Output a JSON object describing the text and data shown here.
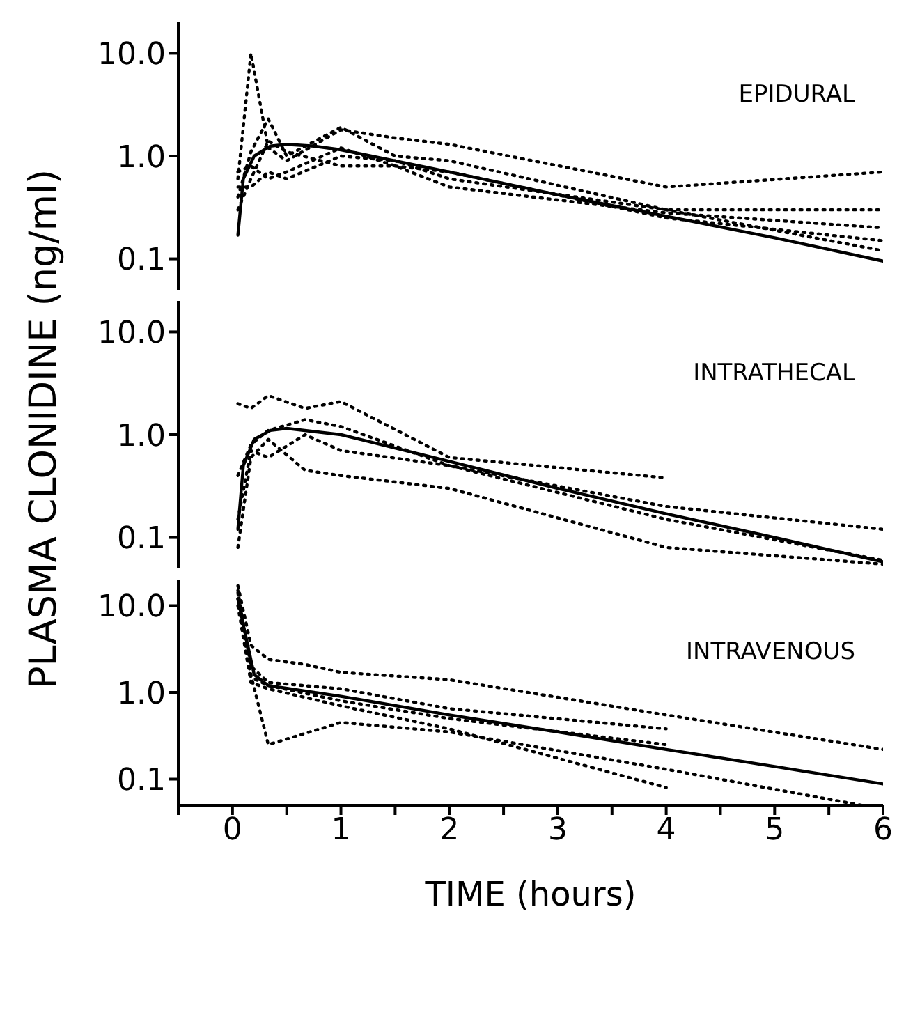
{
  "chart_data": [
    {
      "type": "line",
      "annotations": [
        "EPIDURAL"
      ],
      "xlim": [
        -0.5,
        6
      ],
      "ylim": [
        0.05,
        20
      ],
      "log": "y",
      "tick_labels": "y",
      "grid": false,
      "legend": false,
      "yticks": [
        {
          "value": 0.1,
          "label": "0.1"
        },
        {
          "value": 1,
          "label": "1.0"
        },
        {
          "value": 10,
          "label": "10.0"
        }
      ],
      "series": [
        {
          "color": "#000000",
          "line_style": "dotted",
          "x": [
            0.05,
            0.17,
            0.33,
            0.5,
            1,
            1.5,
            2,
            4,
            6
          ],
          "values": [
            0.6,
            10,
            1.2,
            0.9,
            1.8,
            1.5,
            1.3,
            0.5,
            0.7
          ]
        },
        {
          "color": "#000000",
          "line_style": "dotted",
          "x": [
            0.05,
            0.17,
            0.33,
            0.5,
            1,
            1.5,
            2,
            4,
            6
          ],
          "values": [
            0.4,
            1.1,
            2.3,
            1.0,
            1.9,
            1.0,
            0.9,
            0.3,
            0.3
          ]
        },
        {
          "color": "#000000",
          "line_style": "dotted",
          "x": [
            0.05,
            0.17,
            0.33,
            0.5,
            1,
            1.5,
            2,
            4,
            6
          ],
          "values": [
            0.7,
            0.8,
            0.6,
            0.7,
            1.2,
            0.8,
            0.5,
            0.28,
            0.2
          ]
        },
        {
          "color": "#000000",
          "line_style": "dotted",
          "x": [
            0.05,
            0.17,
            0.33,
            0.5,
            1,
            1.5,
            2,
            4,
            6
          ],
          "values": [
            0.3,
            0.6,
            1.4,
            1.1,
            0.8,
            0.8,
            0.7,
            0.25,
            0.15
          ]
        },
        {
          "color": "#000000",
          "line_style": "dotted",
          "x": [
            0.05,
            0.17,
            0.33,
            0.5,
            1,
            1.5,
            2,
            4,
            6
          ],
          "values": [
            0.5,
            0.5,
            0.7,
            0.6,
            1.0,
            0.9,
            0.6,
            0.3,
            0.12
          ]
        },
        {
          "color": "#000000",
          "line_style": "solid",
          "x": [
            0.05,
            0.1,
            0.2,
            0.35,
            0.5,
            0.75,
            1,
            2,
            3,
            4,
            5,
            6
          ],
          "values": [
            0.17,
            0.6,
            1.0,
            1.25,
            1.3,
            1.25,
            1.15,
            0.7,
            0.42,
            0.26,
            0.16,
            0.095
          ]
        }
      ]
    },
    {
      "type": "line",
      "annotations": [
        "INTRATHECAL"
      ],
      "ylabel": "PLASMA CLONIDINE (ng/ml)",
      "xlim": [
        -0.5,
        6
      ],
      "ylim": [
        0.05,
        20
      ],
      "log": "y",
      "tick_labels": "y",
      "grid": false,
      "legend": false,
      "yticks": [
        {
          "value": 0.1,
          "label": "0.1"
        },
        {
          "value": 1,
          "label": "1.0"
        },
        {
          "value": 10,
          "label": "10.0"
        }
      ],
      "series": [
        {
          "color": "#000000",
          "line_style": "dotted",
          "x": [
            0.05,
            0.17,
            0.33,
            0.67,
            1,
            2,
            4
          ],
          "values": [
            2.0,
            1.8,
            2.4,
            1.8,
            2.1,
            0.6,
            0.38
          ]
        },
        {
          "color": "#000000",
          "line_style": "dotted",
          "x": [
            0.05,
            0.17,
            0.33,
            0.67,
            1,
            2,
            4,
            6
          ],
          "values": [
            0.4,
            0.8,
            1.1,
            1.4,
            1.2,
            0.5,
            0.2,
            0.12
          ]
        },
        {
          "color": "#000000",
          "line_style": "dotted",
          "x": [
            0.05,
            0.17,
            0.33,
            0.67,
            1,
            2,
            4,
            6
          ],
          "values": [
            0.08,
            0.6,
            0.9,
            0.45,
            0.4,
            0.3,
            0.08,
            0.055
          ]
        },
        {
          "color": "#000000",
          "line_style": "dotted",
          "x": [
            0.05,
            0.17,
            0.33,
            0.67,
            1,
            2,
            4,
            6
          ],
          "values": [
            0.15,
            0.7,
            0.6,
            1.0,
            0.7,
            0.5,
            0.15,
            0.06
          ]
        },
        {
          "color": "#000000",
          "line_style": "solid",
          "x": [
            0.05,
            0.1,
            0.2,
            0.35,
            0.5,
            1,
            2,
            3,
            4,
            5,
            6
          ],
          "values": [
            0.12,
            0.5,
            0.9,
            1.1,
            1.15,
            1.0,
            0.55,
            0.3,
            0.17,
            0.1,
            0.058
          ]
        }
      ]
    },
    {
      "type": "line",
      "annotations": [
        "INTRAVENOUS"
      ],
      "xlabel": "TIME (hours)",
      "xlim": [
        -0.5,
        6
      ],
      "ylim": [
        0.05,
        20
      ],
      "log": "y",
      "grid": false,
      "legend": false,
      "yticks": [
        {
          "value": 0.1,
          "label": "0.1"
        },
        {
          "value": 1,
          "label": "1.0"
        },
        {
          "value": 10,
          "label": "10.0"
        }
      ],
      "xticks": [
        0,
        1,
        2,
        3,
        4,
        5,
        6,
        {
          "value": -0.5,
          "label": null
        },
        {
          "value": 0.5,
          "label": null
        },
        {
          "value": 1.5,
          "label": null
        },
        {
          "value": 2.5,
          "label": null
        },
        {
          "value": 3.5,
          "label": null
        },
        {
          "value": 4.5,
          "label": null
        },
        {
          "value": 5.5,
          "label": null
        }
      ],
      "series": [
        {
          "color": "#000000",
          "line_style": "dotted",
          "x": [
            0.05,
            0.17,
            0.33,
            0.67,
            1,
            2,
            4,
            6
          ],
          "values": [
            17,
            3.5,
            2.4,
            2.1,
            1.7,
            1.4,
            0.55,
            0.22
          ]
        },
        {
          "color": "#000000",
          "line_style": "dotted",
          "x": [
            0.05,
            0.17,
            0.33,
            1,
            2,
            4,
            5.8
          ],
          "values": [
            15,
            1.6,
            0.25,
            0.45,
            0.35,
            0.13,
            0.05
          ]
        },
        {
          "color": "#000000",
          "line_style": "dotted",
          "x": [
            0.05,
            0.17,
            0.33,
            1,
            2,
            4
          ],
          "values": [
            12,
            1.5,
            1.2,
            0.8,
            0.5,
            0.25
          ]
        },
        {
          "color": "#000000",
          "line_style": "dotted",
          "x": [
            0.05,
            0.17,
            0.33,
            1,
            2,
            4
          ],
          "values": [
            10,
            1.3,
            1.1,
            0.7,
            0.38,
            0.08
          ]
        },
        {
          "color": "#000000",
          "line_style": "dotted",
          "x": [
            0.05,
            0.17,
            0.33,
            1,
            2,
            4
          ],
          "values": [
            14,
            2,
            1.3,
            1.1,
            0.65,
            0.38
          ]
        },
        {
          "color": "#000000",
          "line_style": "solid",
          "x": [
            0.05,
            0.1,
            0.2,
            0.33,
            1,
            2,
            3,
            4,
            5,
            6
          ],
          "values": [
            12,
            6,
            1.6,
            1.2,
            0.9,
            0.55,
            0.35,
            0.22,
            0.14,
            0.088
          ]
        }
      ]
    }
  ]
}
